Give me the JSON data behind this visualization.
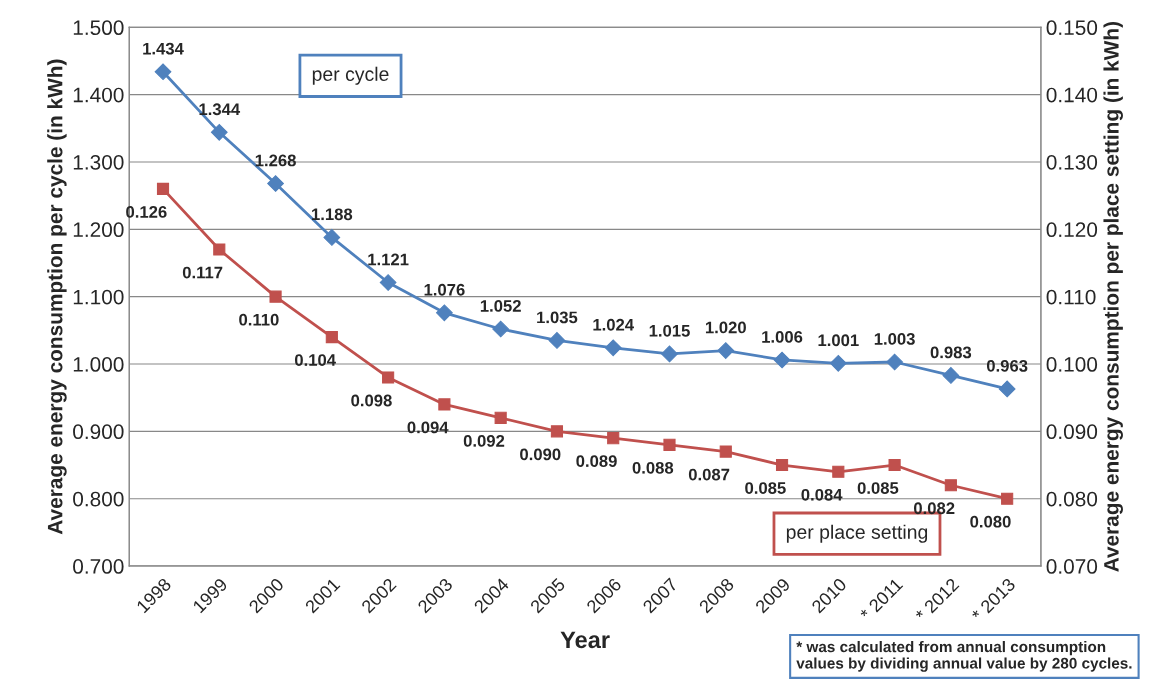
{
  "chart_data": {
    "type": "line",
    "xlabel": "Year",
    "ylabel": "Average energy consumption per cycle (in kWh)",
    "y2label": "Average energy consumption per place setting (in kWh)",
    "categories": [
      "1998",
      "1999",
      "2000",
      "2001",
      "2002",
      "2003",
      "2004",
      "2005",
      "2006",
      "2007",
      "2008",
      "2009",
      "2010",
      "* 2011",
      "* 2012",
      "* 2013"
    ],
    "series": [
      {
        "name": "per cycle",
        "color": "#4f81bd",
        "marker": "diamond",
        "values": [
          1.434,
          1.344,
          1.268,
          1.188,
          1.121,
          1.076,
          1.052,
          1.035,
          1.024,
          1.015,
          1.02,
          1.006,
          1.001,
          1.003,
          0.983,
          0.963
        ],
        "value_labels": [
          "1.434",
          "1.344",
          "1.268",
          "1.188",
          "1.121",
          "1.076",
          "1.052",
          "1.035",
          "1.024",
          "1.015",
          "1.020",
          "1.006",
          "1.001",
          "1.003",
          "0.983",
          "0.963"
        ]
      },
      {
        "name": "per place setting",
        "color": "#c0504d",
        "marker": "square",
        "axis": "y2",
        "values": [
          0.126,
          0.117,
          0.11,
          0.104,
          0.098,
          0.094,
          0.092,
          0.09,
          0.089,
          0.088,
          0.087,
          0.085,
          0.084,
          0.085,
          0.082,
          0.08
        ],
        "value_labels": [
          "0.126",
          "0.117",
          "0.110",
          "0.104",
          "0.098",
          "0.094",
          "0.092",
          "0.090",
          "0.089",
          "0.088",
          "0.087",
          "0.085",
          "0.084",
          "0.085",
          "0.082",
          "0.080"
        ]
      }
    ],
    "ylim": [
      0.7,
      1.5
    ],
    "yticks": [
      {
        "value": 0.7,
        "label": "0.700"
      },
      {
        "value": 0.8,
        "label": "0.800"
      },
      {
        "value": 0.9,
        "label": "0.900"
      },
      {
        "value": 1.0,
        "label": "1.000"
      },
      {
        "value": 1.1,
        "label": "1.100"
      },
      {
        "value": 1.2,
        "label": "1.200"
      },
      {
        "value": 1.3,
        "label": "1.300"
      },
      {
        "value": 1.4,
        "label": "1.400"
      },
      {
        "value": 1.5,
        "label": "1.500"
      }
    ],
    "y2lim": [
      0.07,
      0.15
    ],
    "y2ticks": [
      {
        "value": 0.07,
        "label": "0.070"
      },
      {
        "value": 0.08,
        "label": "0.080"
      },
      {
        "value": 0.09,
        "label": "0.090"
      },
      {
        "value": 0.1,
        "label": "0.100"
      },
      {
        "value": 0.11,
        "label": "0.110"
      },
      {
        "value": 0.12,
        "label": "0.120"
      },
      {
        "value": 0.13,
        "label": "0.130"
      },
      {
        "value": 0.14,
        "label": "0.140"
      },
      {
        "value": 0.15,
        "label": "0.150"
      }
    ],
    "grid": "y",
    "annotations": [
      "* was calculated from annual consumption values by dividing annual value by 280 cycles."
    ]
  }
}
